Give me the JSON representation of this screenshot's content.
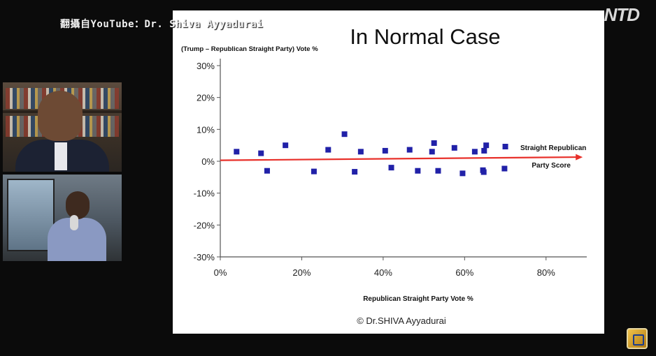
{
  "overlay": {
    "caption": "翻攝自YouTube：Dr. Shiva Ayyadurai",
    "logo": "NTD"
  },
  "chart_data": {
    "type": "scatter",
    "title": "In Normal Case",
    "ylabel": "(Trump – Republican Straight Party) Vote %",
    "xlabel": "Republican Straight Party Vote %",
    "copyright": "© Dr.SHIVA Ayyadurai",
    "xlim": [
      0,
      90
    ],
    "ylim": [
      -30,
      30
    ],
    "x_ticks": [
      0,
      20,
      40,
      60,
      80
    ],
    "x_tick_labels": [
      "0%",
      "20%",
      "40%",
      "60%",
      "80%"
    ],
    "y_ticks": [
      30,
      20,
      10,
      0,
      -10,
      -20,
      -30
    ],
    "y_tick_labels": [
      "30%",
      "20%",
      "10%",
      "0%",
      "-10%",
      "-20%",
      "-30%"
    ],
    "grid": false,
    "marker_color": "#2121a8",
    "trend_line": {
      "label_line1": "Straight Republican",
      "label_line2": "Party Score",
      "color": "#e8302a",
      "start": [
        0,
        0.3
      ],
      "end": [
        89,
        1.3
      ]
    },
    "points": [
      {
        "x": 4,
        "y": 3
      },
      {
        "x": 10,
        "y": 2.5
      },
      {
        "x": 11.5,
        "y": -3
      },
      {
        "x": 16,
        "y": 5
      },
      {
        "x": 23,
        "y": -3.2
      },
      {
        "x": 26.5,
        "y": 3.6
      },
      {
        "x": 30.5,
        "y": 8.5
      },
      {
        "x": 33,
        "y": -3.3
      },
      {
        "x": 34.5,
        "y": 3
      },
      {
        "x": 40.5,
        "y": 3.3
      },
      {
        "x": 42,
        "y": -2
      },
      {
        "x": 46.5,
        "y": 3.6
      },
      {
        "x": 48.5,
        "y": -3
      },
      {
        "x": 52,
        "y": 3
      },
      {
        "x": 52.5,
        "y": 5.7
      },
      {
        "x": 53.5,
        "y": -3
      },
      {
        "x": 57.5,
        "y": 4.2
      },
      {
        "x": 59.5,
        "y": -3.8
      },
      {
        "x": 62.5,
        "y": 3
      },
      {
        "x": 64.5,
        "y": -2.8
      },
      {
        "x": 64.7,
        "y": -3.4
      },
      {
        "x": 64.8,
        "y": 3.3
      },
      {
        "x": 65.3,
        "y": 5
      },
      {
        "x": 69.8,
        "y": -2.3
      },
      {
        "x": 70,
        "y": 4.6
      }
    ]
  }
}
